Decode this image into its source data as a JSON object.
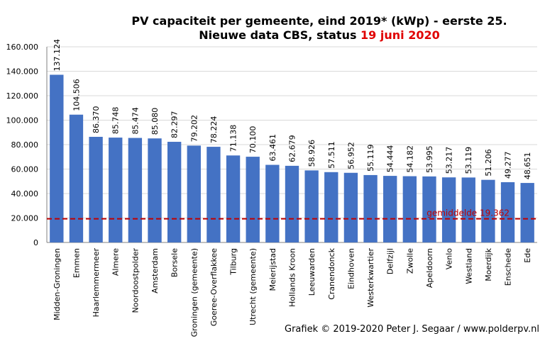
{
  "chart_data": {
    "type": "bar",
    "title_line1": "PV capaciteit  per gemeente, eind 2019* (kWp) - eerste 25.",
    "title_line2_prefix": "Nieuwe data CBS, status ",
    "title_line2_date": "19 juni 2020",
    "categories": [
      "Midden-Groningen",
      "Emmen",
      "Haarlemmermeer",
      "Almere",
      "Noordoostpolder",
      "Amsterdam",
      "Borsele",
      "Groningen (gemeente)",
      "Goeree-Overflakkee",
      "Tilburg",
      "Utrecht (gemeente)",
      "Meierijstad",
      "Hollands Kroon",
      "Leeuwarden",
      "Cranendonck",
      "Eindhoven",
      "Westerkwartier",
      "Delfzijl",
      "Zwolle",
      "Apeldoorn",
      "Venlo",
      "Westland",
      "Moerdijk",
      "Enschede",
      "Ede"
    ],
    "values": [
      137124,
      104506,
      86370,
      85748,
      85474,
      85080,
      82297,
      79202,
      78224,
      71138,
      70100,
      63461,
      62679,
      58926,
      57511,
      56952,
      55119,
      54444,
      54182,
      53995,
      53217,
      53119,
      51206,
      49277,
      48651
    ],
    "value_labels": [
      "137.124",
      "104.506",
      "86.370",
      "85.748",
      "85.474",
      "85.080",
      "82.297",
      "79.202",
      "78.224",
      "71.138",
      "70.100",
      "63.461",
      "62.679",
      "58.926",
      "57.511",
      "56.952",
      "55.119",
      "54.444",
      "54.182",
      "53.995",
      "53.217",
      "53.119",
      "51.206",
      "49.277",
      "48.651"
    ],
    "ylim": [
      0,
      160000
    ],
    "yticks": [
      "0",
      "20.000",
      "40.000",
      "60.000",
      "80.000",
      "100.000",
      "120.000",
      "140.000",
      "160.000"
    ],
    "ytick_values": [
      0,
      20000,
      40000,
      60000,
      80000,
      100000,
      120000,
      140000,
      160000
    ],
    "grid": true,
    "average": {
      "value": 19362,
      "label": "gemiddelde  19.362"
    },
    "colors": {
      "bar": "#4472c4",
      "average_line": "#c00000",
      "title_date": "#e00000",
      "grid": "#d9d9d9"
    }
  },
  "credit": "Grafiek  © 2019-2020 Peter J. Segaar / www.polderpv.nl"
}
